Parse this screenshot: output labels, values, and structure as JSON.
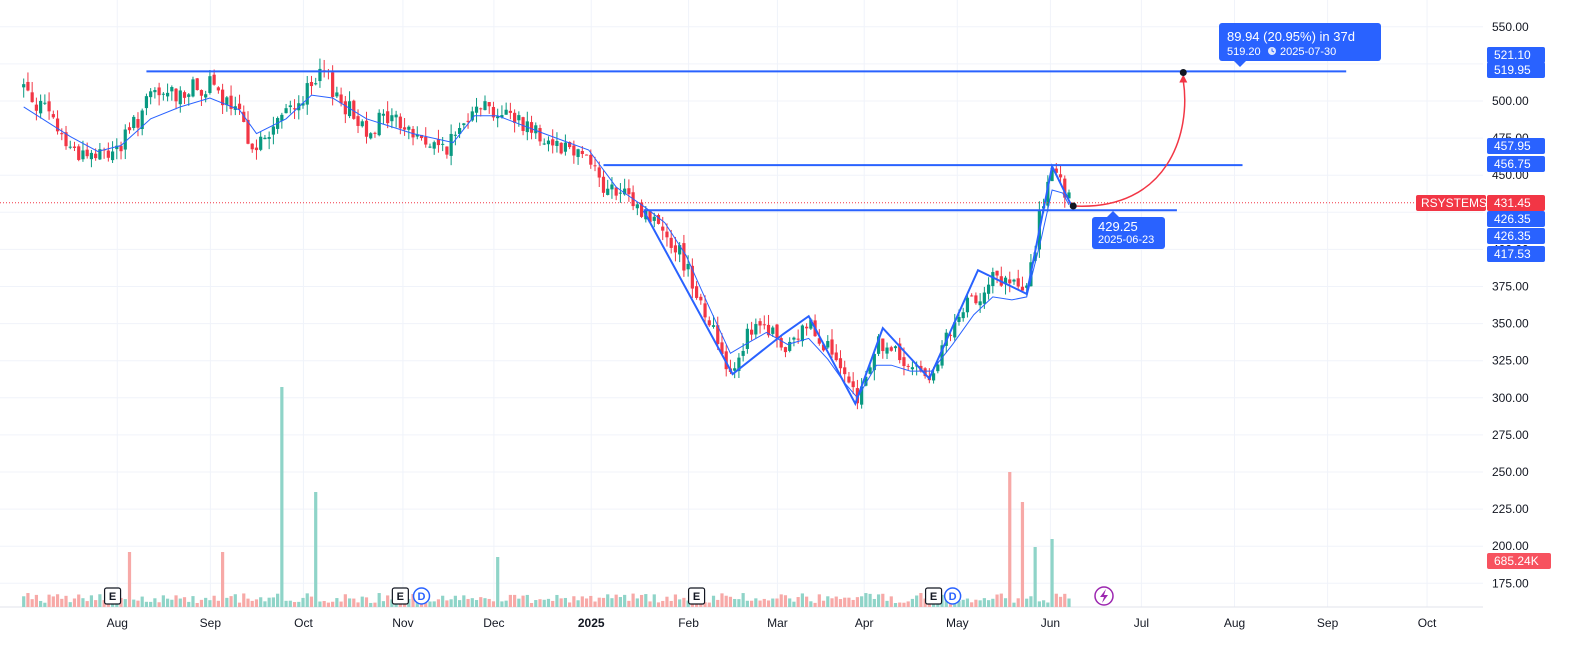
{
  "chart_data": {
    "type": "candlestick",
    "symbol": "RSYSTEMS",
    "last_price": "431.45",
    "ylim": [
      160,
      560
    ],
    "y_ticks": [
      "175.00",
      "200.00",
      "225.00",
      "250.00",
      "275.00",
      "300.00",
      "325.00",
      "350.00",
      "375.00",
      "400.00",
      "425.00",
      "450.00",
      "475.00",
      "500.00",
      "525.00",
      "550.00"
    ],
    "x_labels": [
      {
        "label": "Aug",
        "week": 2.2
      },
      {
        "label": "Sep",
        "week": 6.6
      },
      {
        "label": "Oct",
        "week": 11.0
      },
      {
        "label": "Nov",
        "week": 15.7
      },
      {
        "label": "Dec",
        "week": 20.0
      },
      {
        "label": "2025",
        "week": 24.6,
        "bold": true
      },
      {
        "label": "Feb",
        "week": 29.2
      },
      {
        "label": "Mar",
        "week": 33.4
      },
      {
        "label": "Apr",
        "week": 37.5
      },
      {
        "label": "May",
        "week": 41.9
      },
      {
        "label": "Jun",
        "week": 46.3
      },
      {
        "label": "Jul",
        "week": 50.6
      },
      {
        "label": "Aug",
        "week": 55.0
      },
      {
        "label": "Sep",
        "week": 59.4
      },
      {
        "label": "Oct",
        "week": 64.1
      }
    ],
    "price_path": [
      [
        0,
        510
      ],
      [
        1.2,
        490
      ],
      [
        2.2,
        468
      ],
      [
        3.5,
        462
      ],
      [
        4.6,
        470
      ],
      [
        6.0,
        502
      ],
      [
        7.4,
        506
      ],
      [
        8.8,
        510
      ],
      [
        10.2,
        488
      ],
      [
        11.0,
        468
      ],
      [
        12.4,
        492
      ],
      [
        13.6,
        508
      ],
      [
        14.2,
        518
      ],
      [
        15.1,
        498
      ],
      [
        16.2,
        482
      ],
      [
        17.3,
        490
      ],
      [
        18.4,
        478
      ],
      [
        19.5,
        468
      ],
      [
        20.3,
        472
      ],
      [
        21.3,
        502
      ],
      [
        22.4,
        492
      ],
      [
        23.4,
        488
      ],
      [
        24.6,
        476
      ],
      [
        25.6,
        470
      ],
      [
        26.7,
        465
      ],
      [
        27.4,
        440
      ],
      [
        28.0,
        438
      ],
      [
        28.7,
        432
      ],
      [
        29.4,
        424
      ],
      [
        30.3,
        414
      ],
      [
        31.3,
        390
      ],
      [
        32.3,
        355
      ],
      [
        33.4,
        318
      ],
      [
        34.1,
        340
      ],
      [
        35.1,
        348
      ],
      [
        36.1,
        330
      ],
      [
        37.1,
        352
      ],
      [
        38.0,
        335
      ],
      [
        38.8,
        310
      ],
      [
        39.4,
        296
      ],
      [
        40.3,
        338
      ],
      [
        41.0,
        332
      ],
      [
        41.9,
        318
      ],
      [
        42.9,
        318
      ],
      [
        43.9,
        345
      ],
      [
        44.9,
        368
      ],
      [
        45.8,
        380
      ],
      [
        46.7,
        376
      ],
      [
        47.4,
        372
      ],
      [
        48.1,
        428
      ],
      [
        48.6,
        452
      ],
      [
        49.1,
        440
      ],
      [
        49.4,
        431.45
      ]
    ],
    "ma_path": [
      [
        0,
        496
      ],
      [
        2.2,
        476
      ],
      [
        3.5,
        466
      ],
      [
        4.6,
        470
      ],
      [
        6.0,
        488
      ],
      [
        7.4,
        496
      ],
      [
        8.8,
        502
      ],
      [
        10.2,
        494
      ],
      [
        11.0,
        478
      ],
      [
        12.4,
        488
      ],
      [
        13.6,
        504
      ],
      [
        14.6,
        502
      ],
      [
        16.2,
        488
      ],
      [
        18.4,
        478
      ],
      [
        20.3,
        472
      ],
      [
        21.3,
        490
      ],
      [
        22.4,
        490
      ],
      [
        24.6,
        478
      ],
      [
        26.7,
        467
      ],
      [
        28.0,
        442
      ],
      [
        29.4,
        428
      ],
      [
        30.3,
        418
      ],
      [
        31.3,
        396
      ],
      [
        32.3,
        364
      ],
      [
        33.4,
        330
      ],
      [
        34.1,
        336
      ],
      [
        35.1,
        344
      ],
      [
        36.1,
        336
      ],
      [
        37.1,
        340
      ],
      [
        38.0,
        326
      ],
      [
        38.8,
        310
      ],
      [
        39.4,
        300
      ],
      [
        40.3,
        322
      ],
      [
        41.0,
        322
      ],
      [
        41.9,
        318
      ],
      [
        42.9,
        318
      ],
      [
        43.9,
        336
      ],
      [
        44.9,
        356
      ],
      [
        45.8,
        368
      ],
      [
        46.7,
        366
      ],
      [
        47.4,
        368
      ],
      [
        48.1,
        408
      ],
      [
        48.6,
        440
      ],
      [
        49.1,
        438
      ],
      [
        49.4,
        430
      ]
    ],
    "volume_spikes": [
      [
        12.1,
        220
      ],
      [
        13.7,
        115
      ],
      [
        46.6,
        135
      ],
      [
        47.3,
        105
      ],
      [
        47.9,
        60
      ],
      [
        48.6,
        68
      ],
      [
        5.1,
        55
      ],
      [
        9.3,
        55
      ],
      [
        22.3,
        50
      ]
    ],
    "volume_last": "685.24K",
    "horizontal_levels": [
      {
        "price": 519.95,
        "from_week": 5.8,
        "to_week": 62.5
      },
      {
        "price": 456.75,
        "from_week": 27.4,
        "to_week": 57.6
      },
      {
        "price": 426.35,
        "from_week": 29.3,
        "to_week": 54.5
      }
    ],
    "pattern_points": [
      [
        29.3,
        426
      ],
      [
        33.5,
        316
      ],
      [
        35.9,
        343
      ],
      [
        37.1,
        355
      ],
      [
        39.3,
        296
      ],
      [
        40.6,
        347
      ],
      [
        42.8,
        313
      ],
      [
        45.1,
        386
      ],
      [
        47.4,
        370
      ],
      [
        48.6,
        456
      ],
      [
        49.5,
        430
      ]
    ],
    "projection": {
      "from_week": 49.6,
      "from_price": 429.25,
      "to_week": 54.8,
      "to_price": 519.2
    },
    "price_tags": [
      {
        "value": "521.10",
        "color": "#2962ff"
      },
      {
        "value": "519.95",
        "color": "#2962ff"
      },
      {
        "value": "457.95",
        "color": "#2962ff"
      },
      {
        "value": "456.75",
        "color": "#2962ff"
      },
      {
        "value": "431.45",
        "color": "#f23645"
      },
      {
        "value": "426.35",
        "color": "#2962ff"
      },
      {
        "value": "426.35",
        "color": "#2962ff"
      },
      {
        "value": "417.53",
        "color": "#2962ff"
      }
    ],
    "annotations": {
      "target_main": "89.94 (20.95%) in 37d",
      "target_sub": "519.20",
      "target_date": "2025-07-30",
      "point_price": "429.25",
      "point_date": "2025-06-23"
    },
    "event_markers": [
      {
        "type": "E",
        "week": 4.2
      },
      {
        "type": "E",
        "week": 17.8
      },
      {
        "type": "D",
        "week": 18.8
      },
      {
        "type": "E",
        "week": 31.8
      },
      {
        "type": "E",
        "week": 43.0
      },
      {
        "type": "D",
        "week": 43.9
      }
    ],
    "colors": {
      "up": "#089981",
      "down": "#f23645",
      "ma": "#2962ff",
      "level": "#2962ff",
      "projection": "#f23645",
      "grid": "#f0f3fa"
    },
    "grid": true
  }
}
